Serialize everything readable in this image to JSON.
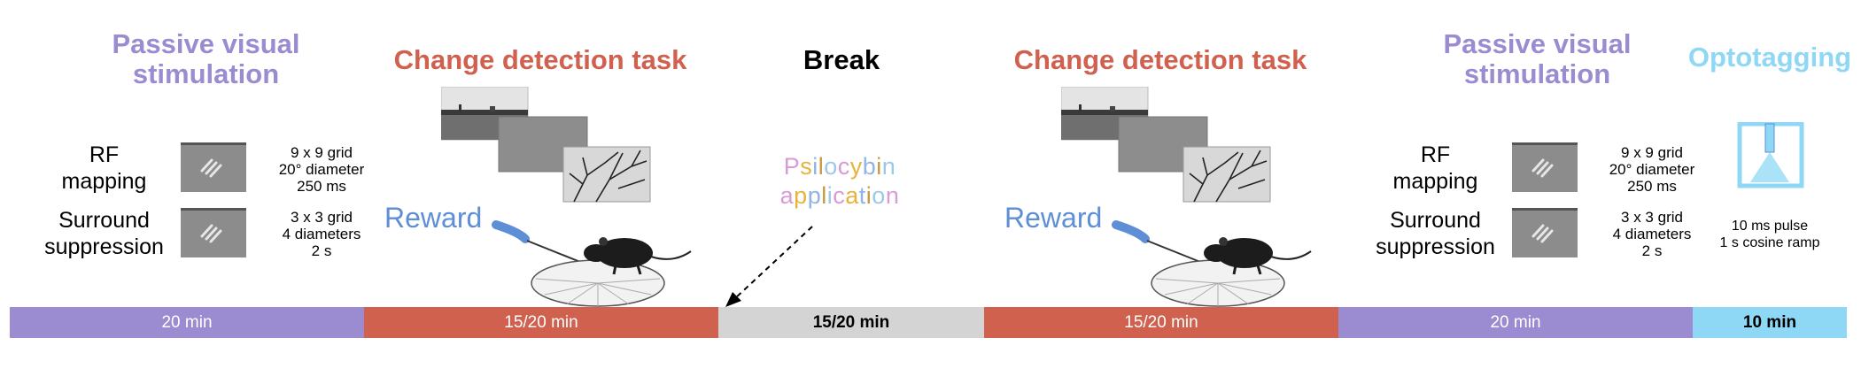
{
  "phases": {
    "passive1": {
      "title_line1": "Passive visual",
      "title_line2": "stimulation",
      "duration": "20 min"
    },
    "change1": {
      "title": "Change detection task",
      "duration": "15/20 min",
      "reward_label": "Reward"
    },
    "break": {
      "title": "Break",
      "duration": "15/20 min",
      "annotation_line1": "Psilocybin",
      "annotation_line2": "application"
    },
    "change2": {
      "title": "Change detection task",
      "duration": "15/20 min",
      "reward_label": "Reward"
    },
    "passive2": {
      "title_line1": "Passive visual",
      "title_line2": "stimulation",
      "duration": "20 min"
    },
    "opto": {
      "title": "Optotagging",
      "duration": "10 min",
      "param_line1": "10 ms pulse",
      "param_line2": "1 s cosine ramp"
    }
  },
  "rf_mapping": {
    "label_line1": "RF",
    "label_line2": "mapping",
    "param_line1": "9 x 9 grid",
    "param_line2": "20° diameter",
    "param_line3": "250 ms"
  },
  "surround": {
    "label_line1": "Surround",
    "label_line2": "suppression",
    "param_line1": "3 x 3 grid",
    "param_line2": "4 diameters",
    "param_line3": "2 s"
  },
  "colors": {
    "purple": "#9B8BD0",
    "red": "#D0614F",
    "grey": "#D4D4D4",
    "cyan": "#8ED8F5"
  },
  "icons": [
    "grating-stimulus-icon",
    "natural-image-icon",
    "mouse-on-wheel-icon",
    "reward-spout-icon",
    "laser-icon",
    "dashed-arrow-icon"
  ]
}
